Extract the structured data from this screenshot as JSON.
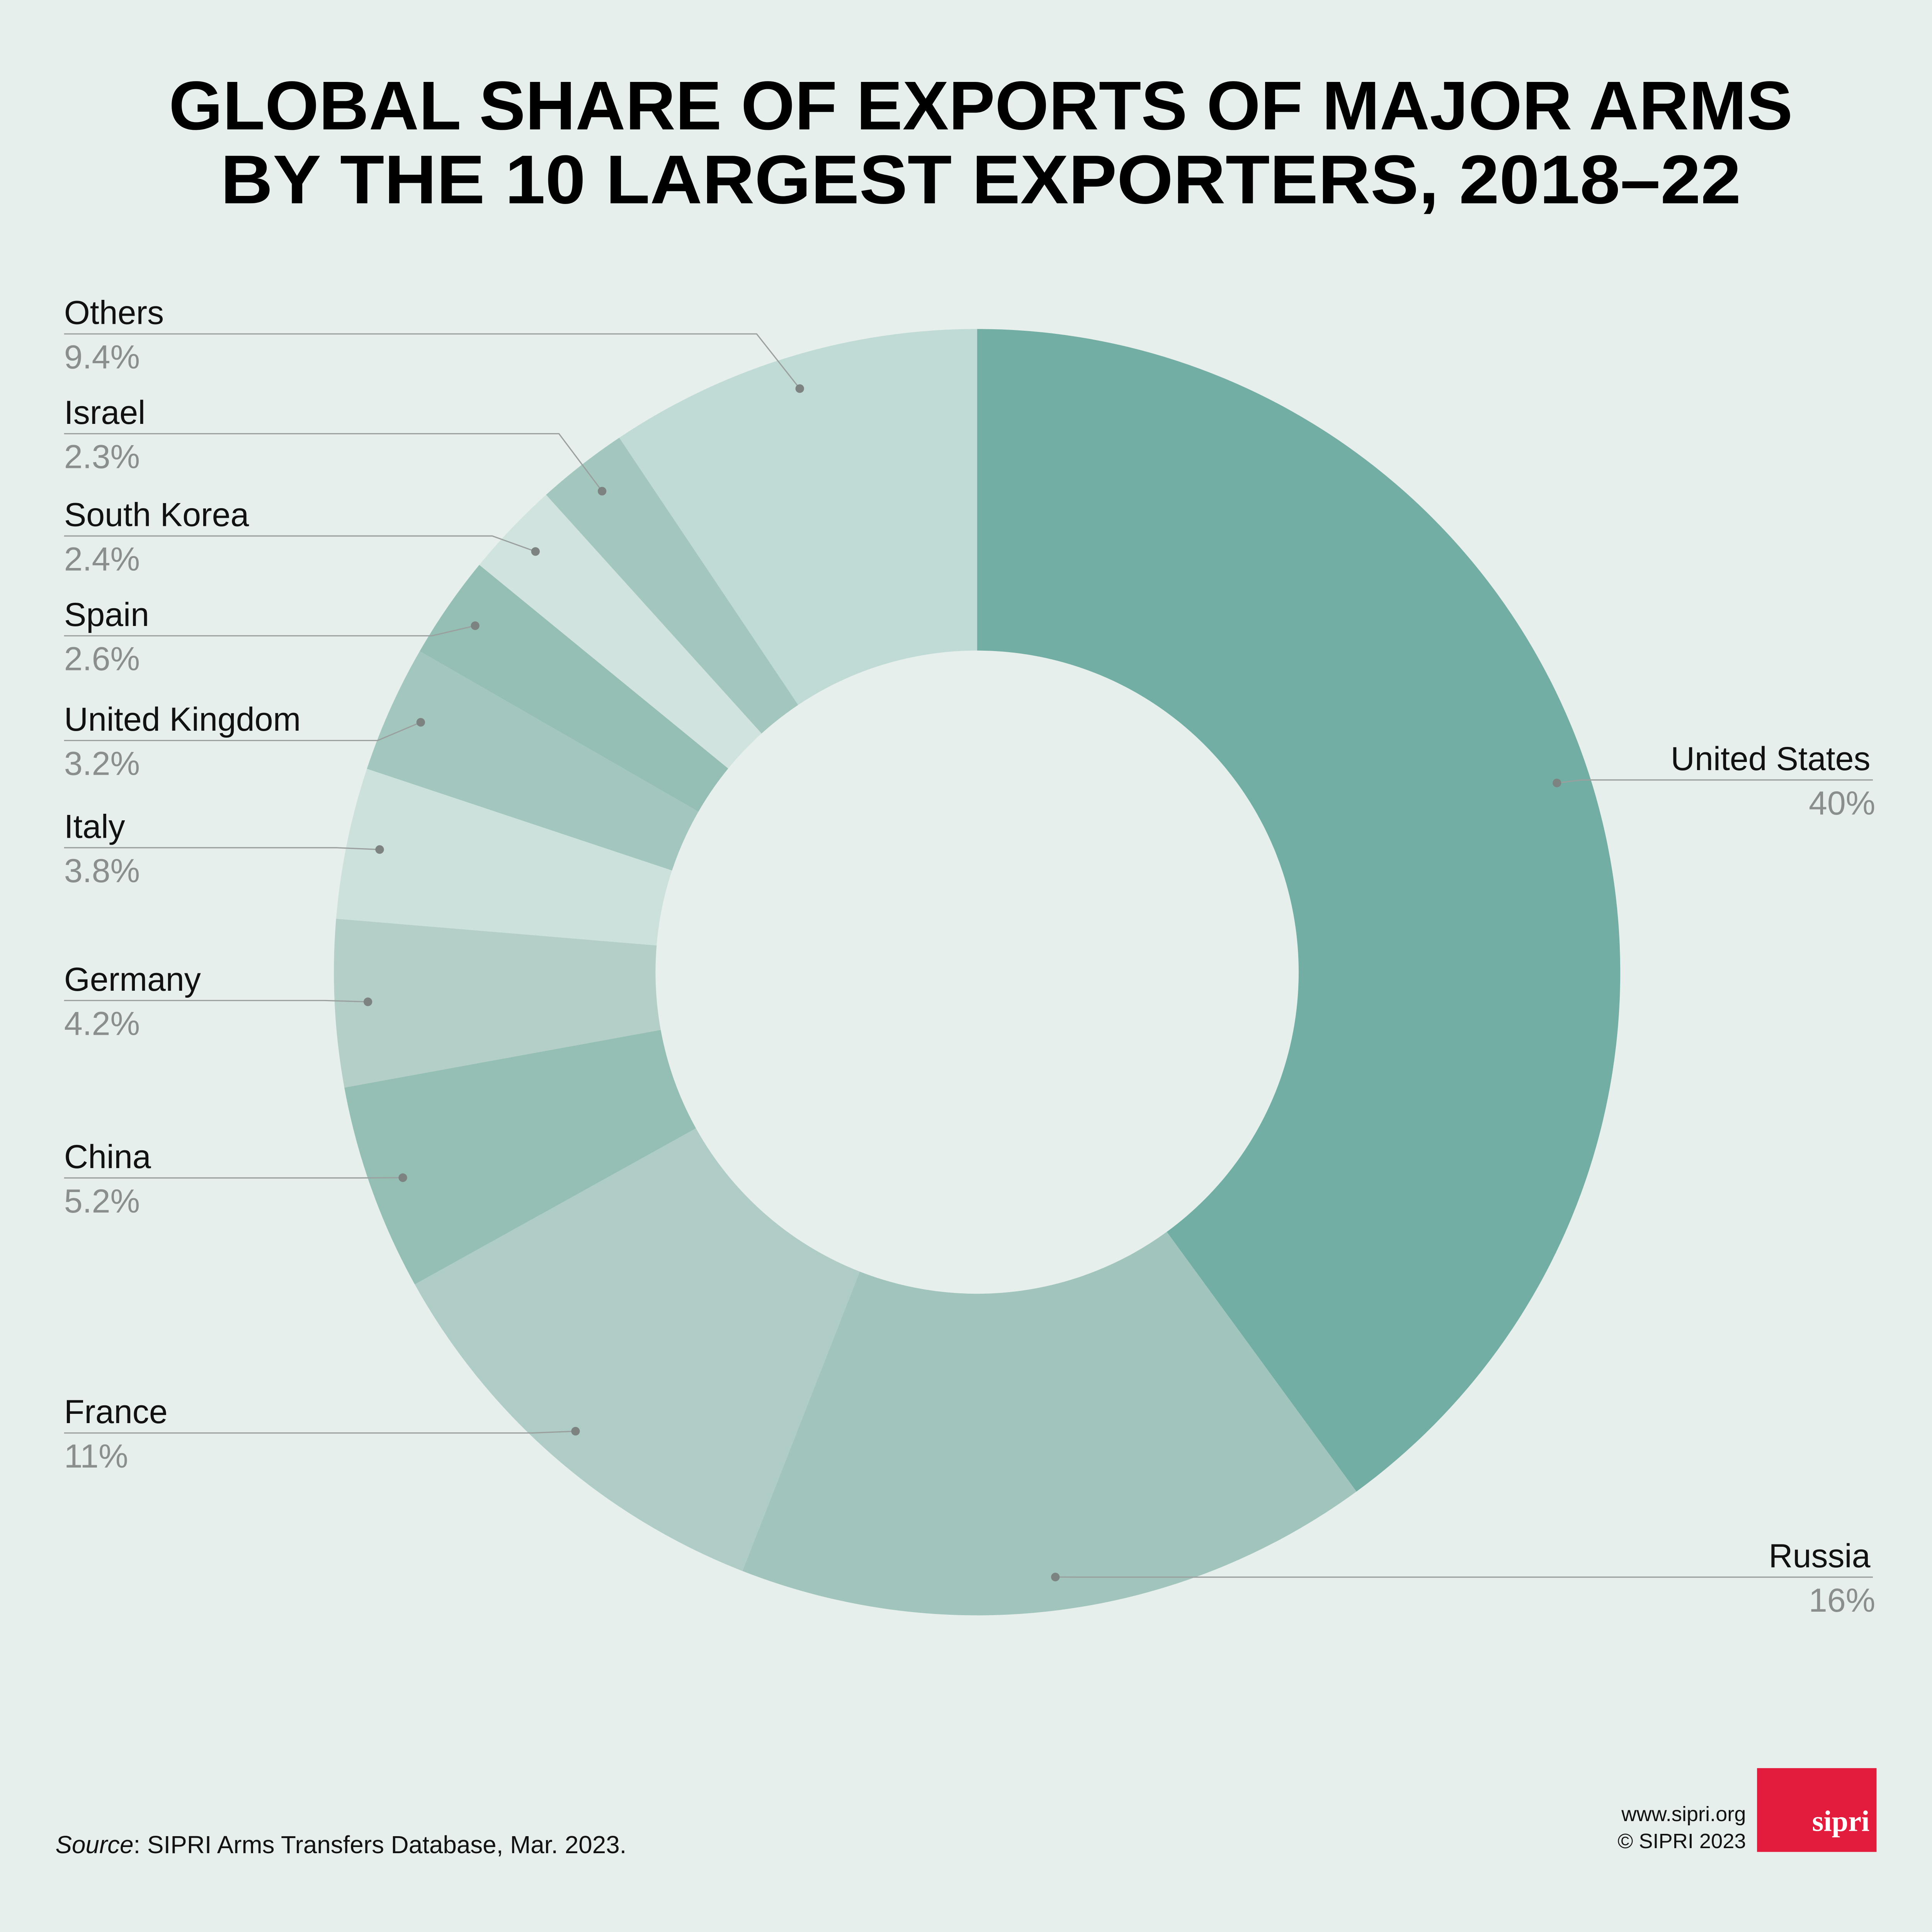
{
  "chart_data": {
    "type": "pie",
    "donut": true,
    "title": [
      "GLOBAL SHARE OF EXPORTS OF MAJOR ARMS",
      "BY THE 10 LARGEST EXPORTERS, 2018–22"
    ],
    "categories": [
      "United States",
      "Russia",
      "France",
      "China",
      "Germany",
      "Italy",
      "United Kingdom",
      "Spain",
      "South Korea",
      "Israel",
      "Others"
    ],
    "values": [
      40,
      16,
      11,
      5.2,
      4.2,
      3.8,
      3.2,
      2.6,
      2.4,
      2.3,
      9.4
    ],
    "value_labels": [
      "40%",
      "16%",
      "11%",
      "5.2%",
      "4.2%",
      "3.8%",
      "3.2%",
      "2.6%",
      "2.4%",
      "2.3%",
      "9.4%"
    ],
    "colors": [
      "#72aea4",
      "#a1c4bd",
      "#b0ccc6",
      "#95bfb5",
      "#b3cfc8",
      "#cde1dc",
      "#a3c6bf",
      "#95bfb5",
      "#d1e3df",
      "#a3c6bf",
      "#c0dbd6"
    ],
    "source": {
      "label": "Source",
      "text": ": SIPRI Arms Transfers Database, Mar. 2023."
    },
    "website": "www.sipri.org",
    "copyright": "© SIPRI 2023",
    "logo": "sipri"
  }
}
